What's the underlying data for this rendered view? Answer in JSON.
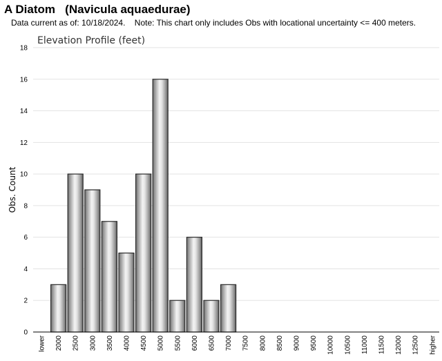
{
  "header": {
    "title": "A Diatom   (Navicula aquaedurae)",
    "subtitle": "Data current as of: 10/18/2024.    Note: This chart only includes Obs with locational uncertainty <= 400 meters."
  },
  "chart_data": {
    "type": "bar",
    "title": "Elevation Profile (feet)",
    "xlabel": "",
    "ylabel": "Obs. Count",
    "ylim": [
      0,
      18
    ],
    "yticks": [
      0,
      2,
      4,
      6,
      8,
      10,
      12,
      14,
      16,
      18
    ],
    "grid": true,
    "categories": [
      "lower",
      "2000",
      "2500",
      "3000",
      "3500",
      "4000",
      "4500",
      "5000",
      "5500",
      "6000",
      "6500",
      "7000",
      "7500",
      "8000",
      "8500",
      "9000",
      "9500",
      "10000",
      "10500",
      "11000",
      "11500",
      "12000",
      "12500",
      "higher"
    ],
    "values": [
      0,
      3,
      10,
      9,
      7,
      5,
      10,
      16,
      2,
      6,
      2,
      3,
      0,
      0,
      0,
      0,
      0,
      0,
      0,
      0,
      0,
      0,
      0,
      0
    ]
  }
}
